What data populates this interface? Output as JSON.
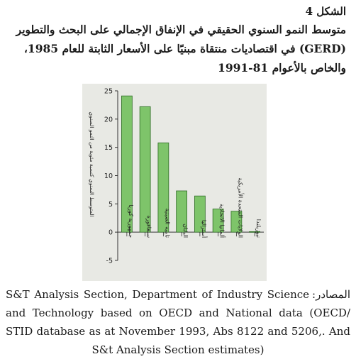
{
  "figure": {
    "number": "الشكل 4",
    "title_lines": [
      "متوسط النمو السنوي الحقيقي في الإنفاق الإجمالي على البحث والتطوير",
      "(GERD) في اقتصاديات منتقاة مبنيًا على الأسعار الثابتة للعام 1985،",
      "والخاص بالأعوام 81-1991"
    ]
  },
  "colors": {
    "bar_fill": "#7ec46a",
    "bar_stroke": "#2f6b26",
    "axis": "#333333",
    "plot_bg": "#e8e9e4"
  },
  "chart_data": {
    "type": "bar",
    "title": "",
    "ylabel": "المتوسط السنوي كنسبة مئوية من النمو السنوي",
    "xlabel": "",
    "ylim": [
      -5,
      25
    ],
    "yticks": [
      -5,
      0,
      5,
      10,
      15,
      20,
      25
    ],
    "ytick_labels": [
      "-5",
      "0",
      "5",
      "10",
      "15",
      "20",
      "25"
    ],
    "grid": false,
    "categories": [
      "جمهورية كوريا",
      "سنغافورة",
      "تايبيه الصينية",
      "اليابان",
      "أستراليا",
      "ألمانيا الاتحادية",
      "الولايات المتحدة الأمريكية",
      "نيوزيلندا"
    ],
    "values": [
      24.1,
      22.2,
      15.8,
      7.3,
      6.4,
      4.1,
      3.7,
      0.1
    ]
  },
  "source": {
    "label": "المصادر:",
    "text": "S&T Analysis Section, Department of Industry Science and Technology based on OECD and National data (OECD/ STID database as at November 1993, Abs 8122 and 5206,. And S&t Analysis Section estimates)"
  }
}
